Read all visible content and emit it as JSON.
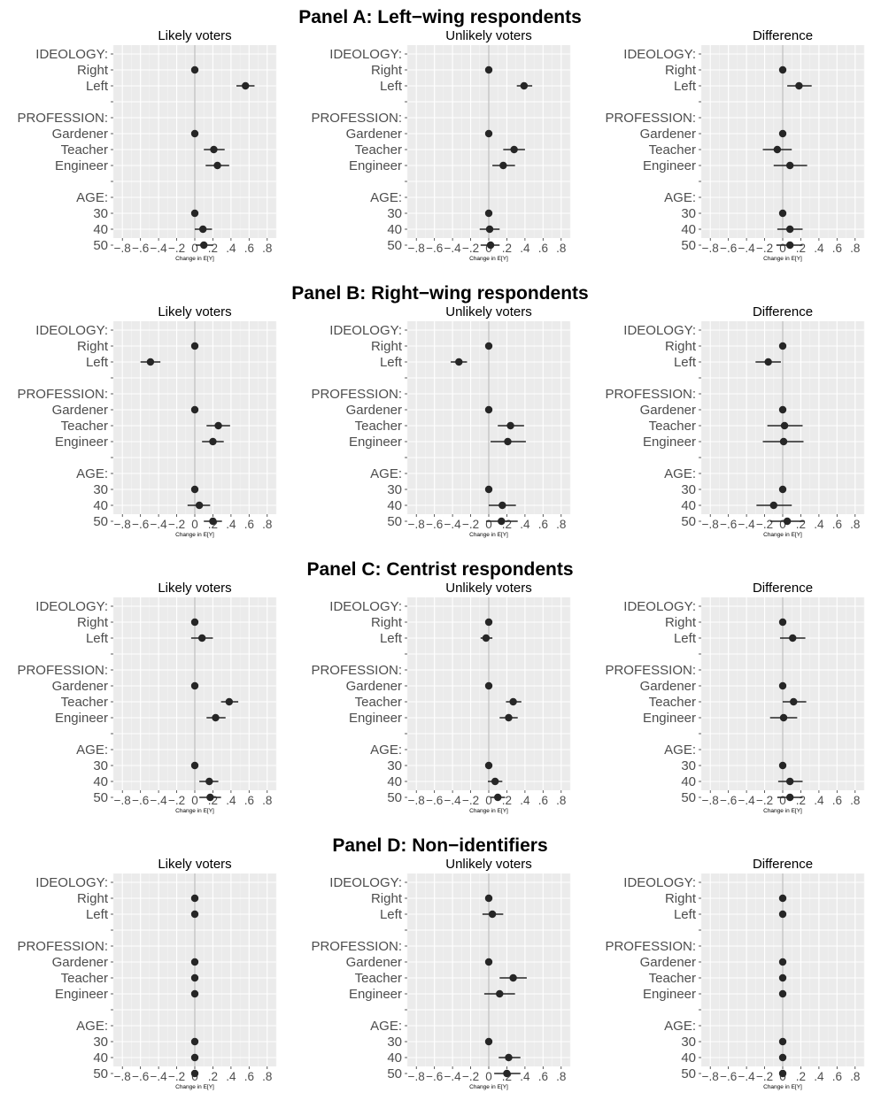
{
  "row_labels": [
    "IDEOLOGY:",
    "Right",
    "Left",
    "",
    "PROFESSION:",
    "Gardener",
    "Teacher",
    "Engineer",
    "",
    "AGE:",
    "30",
    "40",
    "50"
  ],
  "x_ticks": [
    "−.8",
    "−.6",
    "−.4",
    "−.2",
    "0",
    ".2",
    ".4",
    ".6",
    ".8"
  ],
  "chart_data": [
    {
      "title": "Panel A: Left−wing respondents",
      "subplots": [
        {
          "type": "scatter",
          "title": "Likely voters",
          "xlabel": "Change in E[Y]",
          "xlim": [
            -0.9,
            0.9
          ],
          "points": [
            {
              "row": "Right",
              "x": 0.0,
              "lo": 0.0,
              "hi": 0.0
            },
            {
              "row": "Left",
              "x": 0.56,
              "lo": 0.46,
              "hi": 0.66
            },
            {
              "row": "Gardener",
              "x": 0.0,
              "lo": 0.0,
              "hi": 0.0
            },
            {
              "row": "Teacher",
              "x": 0.21,
              "lo": 0.1,
              "hi": 0.33
            },
            {
              "row": "Engineer",
              "x": 0.25,
              "lo": 0.12,
              "hi": 0.38
            },
            {
              "row": "30",
              "x": 0.0,
              "lo": 0.0,
              "hi": 0.0
            },
            {
              "row": "40",
              "x": 0.09,
              "lo": 0.0,
              "hi": 0.19
            },
            {
              "row": "50",
              "x": 0.1,
              "lo": 0.01,
              "hi": 0.2
            }
          ]
        },
        {
          "type": "scatter",
          "title": "Unlikely voters",
          "xlabel": "Change in E[Y]",
          "xlim": [
            -0.9,
            0.9
          ],
          "points": [
            {
              "row": "Right",
              "x": 0.0,
              "lo": 0.0,
              "hi": 0.0
            },
            {
              "row": "Left",
              "x": 0.39,
              "lo": 0.31,
              "hi": 0.48
            },
            {
              "row": "Gardener",
              "x": 0.0,
              "lo": 0.0,
              "hi": 0.0
            },
            {
              "row": "Teacher",
              "x": 0.28,
              "lo": 0.16,
              "hi": 0.4
            },
            {
              "row": "Engineer",
              "x": 0.16,
              "lo": 0.04,
              "hi": 0.29
            },
            {
              "row": "30",
              "x": 0.0,
              "lo": 0.0,
              "hi": 0.0
            },
            {
              "row": "40",
              "x": 0.01,
              "lo": -0.1,
              "hi": 0.12
            },
            {
              "row": "50",
              "x": 0.02,
              "lo": -0.09,
              "hi": 0.12
            }
          ]
        },
        {
          "type": "scatter",
          "title": "Difference",
          "xlabel": "Change in E[Y]",
          "xlim": [
            -0.9,
            0.9
          ],
          "points": [
            {
              "row": "Right",
              "x": 0.0,
              "lo": 0.0,
              "hi": 0.0
            },
            {
              "row": "Left",
              "x": 0.18,
              "lo": 0.05,
              "hi": 0.32
            },
            {
              "row": "Gardener",
              "x": 0.0,
              "lo": 0.0,
              "hi": 0.0
            },
            {
              "row": "Teacher",
              "x": -0.06,
              "lo": -0.22,
              "hi": 0.1
            },
            {
              "row": "Engineer",
              "x": 0.08,
              "lo": -0.1,
              "hi": 0.27
            },
            {
              "row": "30",
              "x": 0.0,
              "lo": 0.0,
              "hi": 0.0
            },
            {
              "row": "40",
              "x": 0.08,
              "lo": -0.06,
              "hi": 0.22
            },
            {
              "row": "50",
              "x": 0.08,
              "lo": -0.07,
              "hi": 0.22
            }
          ]
        }
      ]
    },
    {
      "title": "Panel B: Right−wing respondents",
      "subplots": [
        {
          "type": "scatter",
          "title": "Likely voters",
          "xlabel": "Change in E[Y]",
          "xlim": [
            -0.9,
            0.9
          ],
          "points": [
            {
              "row": "Right",
              "x": 0.0,
              "lo": 0.0,
              "hi": 0.0
            },
            {
              "row": "Left",
              "x": -0.49,
              "lo": -0.6,
              "hi": -0.38
            },
            {
              "row": "Gardener",
              "x": 0.0,
              "lo": 0.0,
              "hi": 0.0
            },
            {
              "row": "Teacher",
              "x": 0.26,
              "lo": 0.13,
              "hi": 0.39
            },
            {
              "row": "Engineer",
              "x": 0.2,
              "lo": 0.08,
              "hi": 0.32
            },
            {
              "row": "30",
              "x": 0.0,
              "lo": 0.0,
              "hi": 0.0
            },
            {
              "row": "40",
              "x": 0.05,
              "lo": -0.08,
              "hi": 0.17
            },
            {
              "row": "50",
              "x": 0.2,
              "lo": 0.1,
              "hi": 0.3
            }
          ]
        },
        {
          "type": "scatter",
          "title": "Unlikely voters",
          "xlabel": "Change in E[Y]",
          "xlim": [
            -0.9,
            0.9
          ],
          "points": [
            {
              "row": "Right",
              "x": 0.0,
              "lo": 0.0,
              "hi": 0.0
            },
            {
              "row": "Left",
              "x": -0.33,
              "lo": -0.42,
              "hi": -0.24
            },
            {
              "row": "Gardener",
              "x": 0.0,
              "lo": 0.0,
              "hi": 0.0
            },
            {
              "row": "Teacher",
              "x": 0.24,
              "lo": 0.1,
              "hi": 0.39
            },
            {
              "row": "Engineer",
              "x": 0.21,
              "lo": 0.02,
              "hi": 0.41
            },
            {
              "row": "30",
              "x": 0.0,
              "lo": 0.0,
              "hi": 0.0
            },
            {
              "row": "40",
              "x": 0.15,
              "lo": 0.0,
              "hi": 0.3
            },
            {
              "row": "50",
              "x": 0.14,
              "lo": -0.03,
              "hi": 0.32
            }
          ]
        },
        {
          "type": "scatter",
          "title": "Difference",
          "xlabel": "Change in E[Y]",
          "xlim": [
            -0.9,
            0.9
          ],
          "points": [
            {
              "row": "Right",
              "x": 0.0,
              "lo": 0.0,
              "hi": 0.0
            },
            {
              "row": "Left",
              "x": -0.16,
              "lo": -0.3,
              "hi": -0.02
            },
            {
              "row": "Gardener",
              "x": 0.0,
              "lo": 0.0,
              "hi": 0.0
            },
            {
              "row": "Teacher",
              "x": 0.02,
              "lo": -0.17,
              "hi": 0.22
            },
            {
              "row": "Engineer",
              "x": 0.01,
              "lo": -0.22,
              "hi": 0.23
            },
            {
              "row": "30",
              "x": 0.0,
              "lo": 0.0,
              "hi": 0.0
            },
            {
              "row": "40",
              "x": -0.1,
              "lo": -0.29,
              "hi": 0.1
            },
            {
              "row": "50",
              "x": 0.05,
              "lo": -0.14,
              "hi": 0.24
            }
          ]
        }
      ]
    },
    {
      "title": "Panel C: Centrist respondents",
      "subplots": [
        {
          "type": "scatter",
          "title": "Likely voters",
          "xlabel": "Change in E[Y]",
          "xlim": [
            -0.9,
            0.9
          ],
          "points": [
            {
              "row": "Right",
              "x": 0.0,
              "lo": 0.0,
              "hi": 0.0
            },
            {
              "row": "Left",
              "x": 0.08,
              "lo": -0.04,
              "hi": 0.2
            },
            {
              "row": "Gardener",
              "x": 0.0,
              "lo": 0.0,
              "hi": 0.0
            },
            {
              "row": "Teacher",
              "x": 0.38,
              "lo": 0.29,
              "hi": 0.48
            },
            {
              "row": "Engineer",
              "x": 0.23,
              "lo": 0.13,
              "hi": 0.34
            },
            {
              "row": "30",
              "x": 0.0,
              "lo": 0.0,
              "hi": 0.0
            },
            {
              "row": "40",
              "x": 0.16,
              "lo": 0.05,
              "hi": 0.26
            },
            {
              "row": "50",
              "x": 0.17,
              "lo": 0.05,
              "hi": 0.29
            }
          ]
        },
        {
          "type": "scatter",
          "title": "Unlikely voters",
          "xlabel": "Change in E[Y]",
          "xlim": [
            -0.9,
            0.9
          ],
          "points": [
            {
              "row": "Right",
              "x": 0.0,
              "lo": 0.0,
              "hi": 0.0
            },
            {
              "row": "Left",
              "x": -0.03,
              "lo": -0.09,
              "hi": 0.04
            },
            {
              "row": "Gardener",
              "x": 0.0,
              "lo": 0.0,
              "hi": 0.0
            },
            {
              "row": "Teacher",
              "x": 0.27,
              "lo": 0.19,
              "hi": 0.36
            },
            {
              "row": "Engineer",
              "x": 0.22,
              "lo": 0.12,
              "hi": 0.32
            },
            {
              "row": "30",
              "x": 0.0,
              "lo": 0.0,
              "hi": 0.0
            },
            {
              "row": "40",
              "x": 0.07,
              "lo": -0.01,
              "hi": 0.15
            },
            {
              "row": "50",
              "x": 0.1,
              "lo": 0.02,
              "hi": 0.18
            }
          ]
        },
        {
          "type": "scatter",
          "title": "Difference",
          "xlabel": "Change in E[Y]",
          "xlim": [
            -0.9,
            0.9
          ],
          "points": [
            {
              "row": "Right",
              "x": 0.0,
              "lo": 0.0,
              "hi": 0.0
            },
            {
              "row": "Left",
              "x": 0.11,
              "lo": -0.03,
              "hi": 0.25
            },
            {
              "row": "Gardener",
              "x": 0.0,
              "lo": 0.0,
              "hi": 0.0
            },
            {
              "row": "Teacher",
              "x": 0.12,
              "lo": 0.0,
              "hi": 0.26
            },
            {
              "row": "Engineer",
              "x": 0.01,
              "lo": -0.14,
              "hi": 0.16
            },
            {
              "row": "30",
              "x": 0.0,
              "lo": 0.0,
              "hi": 0.0
            },
            {
              "row": "40",
              "x": 0.08,
              "lo": -0.05,
              "hi": 0.22
            },
            {
              "row": "50",
              "x": 0.08,
              "lo": -0.06,
              "hi": 0.22
            }
          ]
        }
      ]
    },
    {
      "title": "Panel D: Non−identifiers",
      "subplots": [
        {
          "type": "scatter",
          "title": "Likely voters",
          "xlabel": "Change in E[Y]",
          "xlim": [
            -0.9,
            0.9
          ],
          "points": [
            {
              "row": "Right",
              "x": 0.0,
              "lo": 0.0,
              "hi": 0.0
            },
            {
              "row": "Left",
              "x": 0.0,
              "lo": 0.0,
              "hi": 0.0
            },
            {
              "row": "Gardener",
              "x": 0.0,
              "lo": 0.0,
              "hi": 0.0
            },
            {
              "row": "Teacher",
              "x": 0.0,
              "lo": 0.0,
              "hi": 0.0
            },
            {
              "row": "Engineer",
              "x": 0.0,
              "lo": 0.0,
              "hi": 0.0
            },
            {
              "row": "30",
              "x": 0.0,
              "lo": 0.0,
              "hi": 0.0
            },
            {
              "row": "40",
              "x": 0.0,
              "lo": 0.0,
              "hi": 0.0
            },
            {
              "row": "50",
              "x": 0.0,
              "lo": 0.0,
              "hi": 0.0
            }
          ]
        },
        {
          "type": "scatter",
          "title": "Unlikely voters",
          "xlabel": "Change in E[Y]",
          "xlim": [
            -0.9,
            0.9
          ],
          "points": [
            {
              "row": "Right",
              "x": 0.0,
              "lo": 0.0,
              "hi": 0.0
            },
            {
              "row": "Left",
              "x": 0.04,
              "lo": -0.07,
              "hi": 0.16
            },
            {
              "row": "Gardener",
              "x": 0.0,
              "lo": 0.0,
              "hi": 0.0
            },
            {
              "row": "Teacher",
              "x": 0.27,
              "lo": 0.12,
              "hi": 0.42
            },
            {
              "row": "Engineer",
              "x": 0.12,
              "lo": -0.05,
              "hi": 0.29
            },
            {
              "row": "30",
              "x": 0.0,
              "lo": 0.0,
              "hi": 0.0
            },
            {
              "row": "40",
              "x": 0.22,
              "lo": 0.11,
              "hi": 0.35
            },
            {
              "row": "50",
              "x": 0.2,
              "lo": 0.06,
              "hi": 0.35
            }
          ]
        },
        {
          "type": "scatter",
          "title": "Difference",
          "xlabel": "Change in E[Y]",
          "xlim": [
            -0.9,
            0.9
          ],
          "points": [
            {
              "row": "Right",
              "x": 0.0,
              "lo": 0.0,
              "hi": 0.0
            },
            {
              "row": "Left",
              "x": 0.0,
              "lo": 0.0,
              "hi": 0.0
            },
            {
              "row": "Gardener",
              "x": 0.0,
              "lo": 0.0,
              "hi": 0.0
            },
            {
              "row": "Teacher",
              "x": 0.0,
              "lo": 0.0,
              "hi": 0.0
            },
            {
              "row": "Engineer",
              "x": 0.0,
              "lo": 0.0,
              "hi": 0.0
            },
            {
              "row": "30",
              "x": 0.0,
              "lo": 0.0,
              "hi": 0.0
            },
            {
              "row": "40",
              "x": 0.0,
              "lo": 0.0,
              "hi": 0.0
            },
            {
              "row": "50",
              "x": 0.0,
              "lo": 0.0,
              "hi": 0.0
            }
          ]
        }
      ]
    }
  ]
}
